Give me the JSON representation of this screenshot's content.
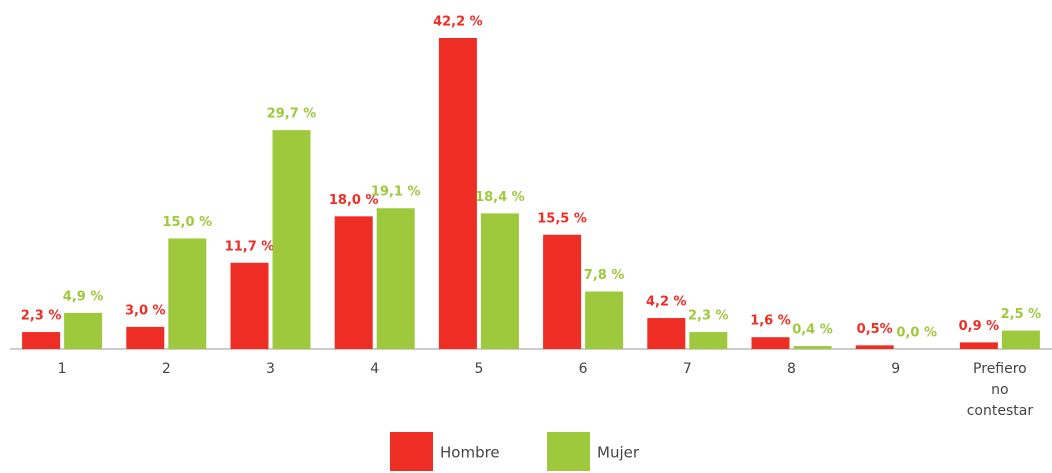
{
  "chart_data": {
    "type": "bar",
    "categories": [
      "1",
      "2",
      "3",
      "4",
      "5",
      "6",
      "7",
      "8",
      "9",
      "Prefiero no contestar"
    ],
    "series": [
      {
        "name": "Hombre",
        "color": "#ee2e24",
        "values": [
          2.3,
          3.0,
          11.7,
          18.0,
          42.2,
          15.5,
          4.2,
          1.6,
          0.5,
          0.9
        ],
        "value_labels": [
          "2,3 %",
          "3,0 %",
          "11,7 %",
          "18,0 %",
          "42,2 %",
          "15,5 %",
          "4,2 %",
          "1,6 %",
          "0,5%",
          "0,9 %"
        ]
      },
      {
        "name": "Mujer",
        "color": "#9fc93c",
        "values": [
          4.9,
          15.0,
          29.7,
          19.1,
          18.4,
          7.8,
          2.3,
          0.4,
          0.0,
          2.5
        ],
        "value_labels": [
          "4,9 %",
          "15,0 %",
          "29,7 %",
          "19,1 %",
          "18,4 %",
          "7,8 %",
          "2,3 %",
          "0,4 %",
          "0,0 %",
          "2,5 %"
        ]
      }
    ],
    "legend": "bottom"
  }
}
